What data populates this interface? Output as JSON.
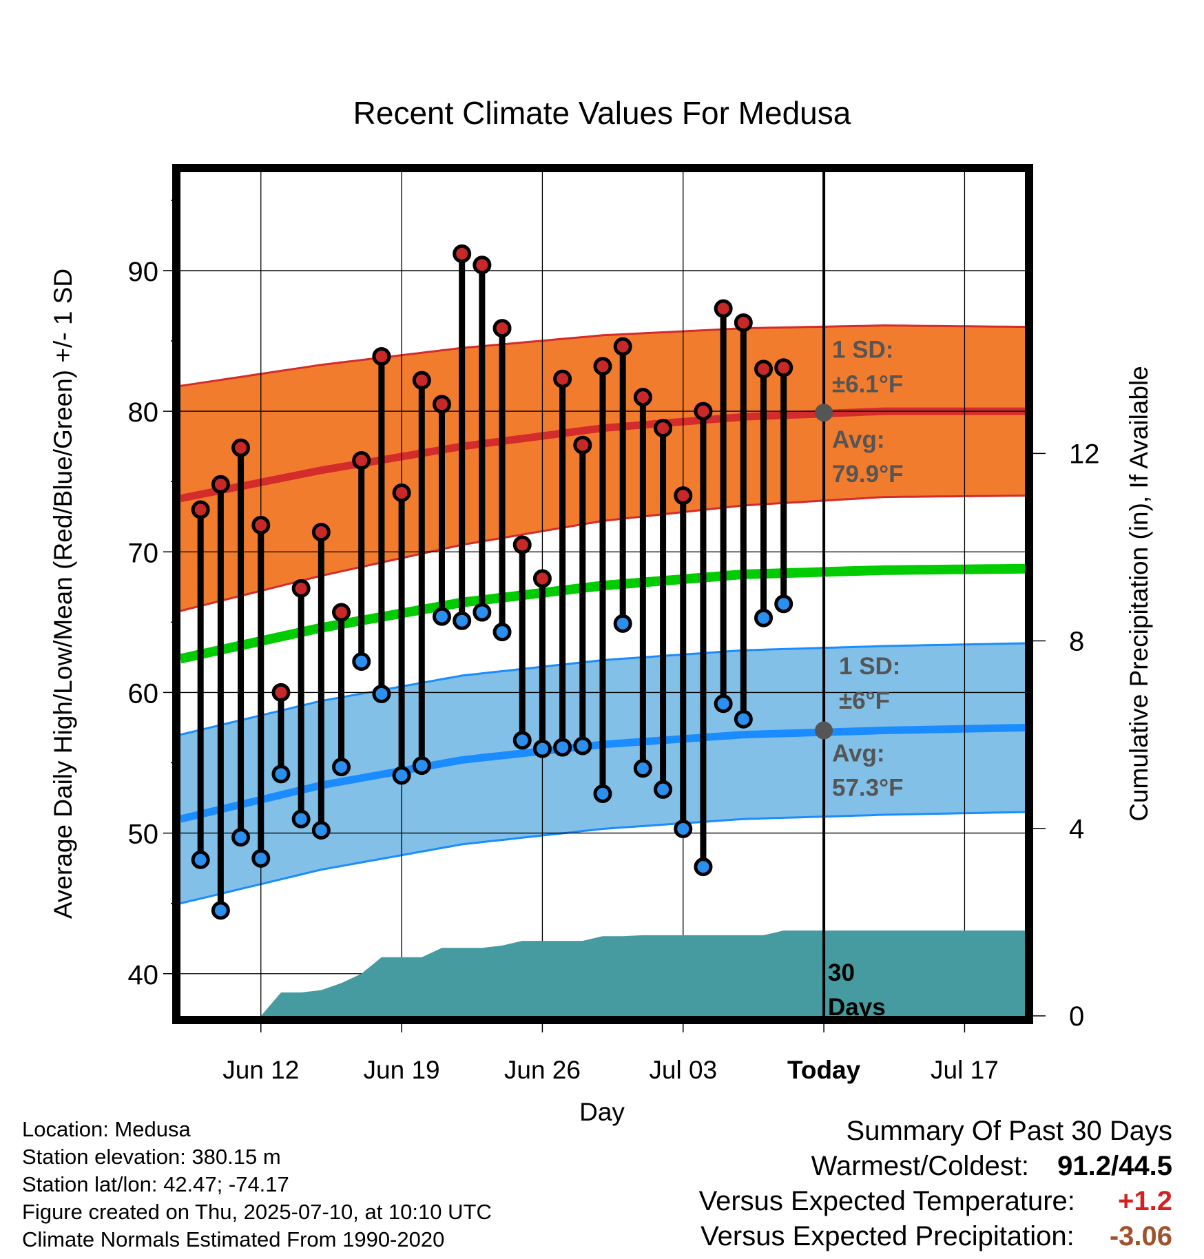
{
  "chart_data": {
    "type": "line",
    "title": "Recent Climate Values For Medusa",
    "xlabel": "Day",
    "ylabel": "Average Daily High/Low/Mean (Red/Blue/Green) +/- 1 SD",
    "y2label": "Cumulative Precipitation (in), If Available",
    "ylim": [
      37,
      97
    ],
    "y2lim": [
      0,
      18
    ],
    "yticks": [
      40,
      50,
      60,
      70,
      80,
      90
    ],
    "y2ticks": [
      0,
      4,
      8,
      12
    ],
    "xlim": [
      "2025-06-08",
      "2025-07-20"
    ],
    "xticks": [
      {
        "date": "2025-06-12",
        "label": "Jun 12"
      },
      {
        "date": "2025-06-19",
        "label": "Jun 19"
      },
      {
        "date": "2025-06-26",
        "label": "Jun 26"
      },
      {
        "date": "2025-07-03",
        "label": "Jul 03"
      },
      {
        "date": "2025-07-10",
        "label": "Today"
      },
      {
        "date": "2025-07-17",
        "label": "Jul 17"
      }
    ],
    "grid": true,
    "colors": {
      "high_band": "#f27c2e",
      "high_line": "#d42b2b",
      "low_band": "#82c0e8",
      "low_line": "#1a8cff",
      "mean_line": "#00cc00",
      "precip": "#469ba0",
      "high_dot": "#c82828",
      "low_dot": "#2b8fef",
      "marker": "#555555",
      "annotation": "#555555"
    },
    "normals": {
      "dates": [
        "2025-06-08",
        "2025-06-15",
        "2025-06-22",
        "2025-06-29",
        "2025-07-06",
        "2025-07-13",
        "2025-07-20"
      ],
      "high_avg": [
        73.8,
        75.8,
        77.5,
        78.8,
        79.6,
        80.0,
        80.0
      ],
      "high_sd": [
        8.0,
        7.5,
        7.0,
        6.6,
        6.3,
        6.1,
        6.0
      ],
      "low_avg": [
        51.0,
        53.4,
        55.2,
        56.3,
        57.0,
        57.3,
        57.5
      ],
      "low_sd": [
        6.0,
        6.0,
        6.0,
        6.0,
        6.0,
        6.0,
        6.0
      ],
      "mean_avg": [
        62.4,
        64.6,
        66.4,
        67.6,
        68.4,
        68.7,
        68.8
      ]
    },
    "daily": [
      {
        "date": "2025-06-09",
        "high": 73.0,
        "low": 48.1
      },
      {
        "date": "2025-06-10",
        "high": 74.8,
        "low": 44.5
      },
      {
        "date": "2025-06-11",
        "high": 77.4,
        "low": 49.7
      },
      {
        "date": "2025-06-12",
        "high": 71.9,
        "low": 48.2
      },
      {
        "date": "2025-06-13",
        "high": 60.0,
        "low": 54.2
      },
      {
        "date": "2025-06-14",
        "high": 67.4,
        "low": 51.0
      },
      {
        "date": "2025-06-15",
        "high": 71.4,
        "low": 50.2
      },
      {
        "date": "2025-06-16",
        "high": 65.7,
        "low": 54.7
      },
      {
        "date": "2025-06-17",
        "high": 76.5,
        "low": 62.2
      },
      {
        "date": "2025-06-18",
        "high": 83.9,
        "low": 59.9
      },
      {
        "date": "2025-06-19",
        "high": 74.2,
        "low": 54.1
      },
      {
        "date": "2025-06-20",
        "high": 82.2,
        "low": 54.8
      },
      {
        "date": "2025-06-21",
        "high": 80.5,
        "low": 65.4
      },
      {
        "date": "2025-06-22",
        "high": 91.2,
        "low": 65.1
      },
      {
        "date": "2025-06-23",
        "high": 90.4,
        "low": 65.7
      },
      {
        "date": "2025-06-24",
        "high": 85.9,
        "low": 64.3
      },
      {
        "date": "2025-06-25",
        "high": 70.5,
        "low": 56.6
      },
      {
        "date": "2025-06-26",
        "high": 68.1,
        "low": 56.0
      },
      {
        "date": "2025-06-27",
        "high": 82.3,
        "low": 56.1
      },
      {
        "date": "2025-06-28",
        "high": 77.6,
        "low": 56.2
      },
      {
        "date": "2025-06-29",
        "high": 83.2,
        "low": 52.8
      },
      {
        "date": "2025-06-30",
        "high": 84.6,
        "low": 64.9
      },
      {
        "date": "2025-07-01",
        "high": 81.0,
        "low": 54.6
      },
      {
        "date": "2025-07-02",
        "high": 78.8,
        "low": 53.1
      },
      {
        "date": "2025-07-03",
        "high": 74.0,
        "low": 50.3
      },
      {
        "date": "2025-07-04",
        "high": 80.0,
        "low": 47.6
      },
      {
        "date": "2025-07-05",
        "high": 87.3,
        "low": 59.2
      },
      {
        "date": "2025-07-06",
        "high": 86.3,
        "low": 58.1
      },
      {
        "date": "2025-07-07",
        "high": 83.0,
        "low": 65.3
      },
      {
        "date": "2025-07-08",
        "high": 83.1,
        "low": 66.3
      }
    ],
    "precip_cumulative": {
      "dates": [
        "2025-06-08",
        "2025-06-11",
        "2025-06-12",
        "2025-06-13",
        "2025-06-14",
        "2025-06-15",
        "2025-06-16",
        "2025-06-17",
        "2025-06-18",
        "2025-06-19",
        "2025-06-20",
        "2025-06-21",
        "2025-06-22",
        "2025-06-23",
        "2025-06-24",
        "2025-06-25",
        "2025-06-26",
        "2025-06-27",
        "2025-06-28",
        "2025-06-29",
        "2025-06-30",
        "2025-07-01",
        "2025-07-02",
        "2025-07-03",
        "2025-07-04",
        "2025-07-05",
        "2025-07-06",
        "2025-07-07",
        "2025-07-08",
        "2025-07-20"
      ],
      "values": [
        0,
        0,
        0,
        0.5,
        0.5,
        0.55,
        0.7,
        0.9,
        1.25,
        1.25,
        1.25,
        1.45,
        1.45,
        1.45,
        1.5,
        1.6,
        1.6,
        1.6,
        1.6,
        1.7,
        1.7,
        1.72,
        1.72,
        1.72,
        1.72,
        1.72,
        1.72,
        1.72,
        1.82,
        1.82
      ]
    },
    "annotations": {
      "high_sd": [
        "1 SD:",
        "±6.1°F"
      ],
      "high_avg": [
        "Avg:",
        "79.9°F"
      ],
      "low_sd": [
        "1 SD:",
        "±6°F"
      ],
      "low_avg": [
        "Avg:",
        "57.3°F"
      ],
      "period": [
        "30",
        "Days"
      ],
      "today_date": "2025-07-10",
      "today_high_avg": 79.9,
      "today_low_avg": 57.3
    }
  },
  "info": {
    "location": "Location: Medusa",
    "elevation": "Station elevation: 380.15 m",
    "latlon": "Station lat/lon: 42.47; -74.17",
    "created": "Figure created on Thu, 2025-07-10, at 10:10 UTC",
    "normals": "Climate Normals Estimated From 1990-2020"
  },
  "summary": {
    "title": "Summary Of Past 30 Days",
    "warmest_coldest_label": "Warmest/Coldest:",
    "warmest_coldest_value": "91.2/44.5",
    "temp_label": "Versus Expected Temperature:",
    "temp_value": "+1.2",
    "temp_color": "#d42020",
    "precip_label": "Versus Expected Precipitation:",
    "precip_value": "-3.06",
    "precip_color": "#a0522d"
  }
}
